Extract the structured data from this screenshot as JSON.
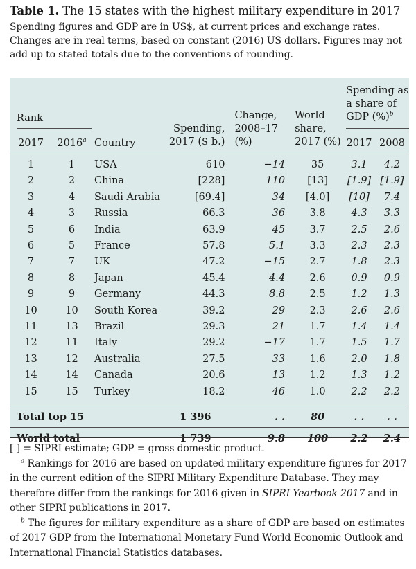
{
  "title_label": "Table 1.",
  "title_text": "The 15 states with the highest military expenditure in 2017",
  "intro": "Spending figures and GDP are in US$, at current prices and exchange rates. Changes are in real terms, based on constant (2016) US dollars. Figures may not add up to stated totals due to the conventions of rounding.",
  "headers": {
    "rank": "Rank",
    "rank_2017": "2017",
    "rank_2016": "2016",
    "rank_2016_note": "a",
    "country": "Country",
    "spending_1": "Spending,",
    "spending_2": "2017 ($ b.)",
    "change_1": "Change,",
    "change_2": "2008–17",
    "change_3": "(%)",
    "share_1": "World",
    "share_2": "share,",
    "share_3": "2017 (%)",
    "gdp_1": "Spending as",
    "gdp_2": "a share of",
    "gdp_3": "GDP (%)",
    "gdp_note": "b",
    "gdp_2017": "2017",
    "gdp_2008": "2008"
  },
  "rows": [
    {
      "r17": "1",
      "r16": "1",
      "country": "USA",
      "spending": "610",
      "change": "−14",
      "share": "35",
      "g17": "3.1",
      "g08": "4.2"
    },
    {
      "r17": "2",
      "r16": "2",
      "country": "China",
      "spending": "[228]",
      "change": "110",
      "share": "[13]",
      "g17": "[1.9]",
      "g08": "[1.9]"
    },
    {
      "r17": "3",
      "r16": "4",
      "country": "Saudi Arabia",
      "spending": "[69.4]",
      "change": "34",
      "share": "[4.0]",
      "g17": "[10]",
      "g08": "7.4"
    },
    {
      "r17": "4",
      "r16": "3",
      "country": "Russia",
      "spending": "66.3",
      "change": "36",
      "share": "3.8",
      "g17": "4.3",
      "g08": "3.3"
    },
    {
      "r17": "5",
      "r16": "6",
      "country": "India",
      "spending": "63.9",
      "change": "45",
      "share": "3.7",
      "g17": "2.5",
      "g08": "2.6"
    },
    {
      "r17": "6",
      "r16": "5",
      "country": "France",
      "spending": "57.8",
      "change": "5.1",
      "share": "3.3",
      "g17": "2.3",
      "g08": "2.3"
    },
    {
      "r17": "7",
      "r16": "7",
      "country": "UK",
      "spending": "47.2",
      "change": "−15",
      "share": "2.7",
      "g17": "1.8",
      "g08": "2.3"
    },
    {
      "r17": "8",
      "r16": "8",
      "country": "Japan",
      "spending": "45.4",
      "change": "4.4",
      "share": "2.6",
      "g17": "0.9",
      "g08": "0.9"
    },
    {
      "r17": "9",
      "r16": "9",
      "country": "Germany",
      "spending": "44.3",
      "change": "8.8",
      "share": "2.5",
      "g17": "1.2",
      "g08": "1.3"
    },
    {
      "r17": "10",
      "r16": "10",
      "country": "South Korea",
      "spending": "39.2",
      "change": "29",
      "share": "2.3",
      "g17": "2.6",
      "g08": "2.6"
    },
    {
      "r17": "11",
      "r16": "13",
      "country": "Brazil",
      "spending": "29.3",
      "change": "21",
      "share": "1.7",
      "g17": "1.4",
      "g08": "1.4"
    },
    {
      "r17": "12",
      "r16": "11",
      "country": "Italy",
      "spending": "29.2",
      "change": "−17",
      "share": "1.7",
      "g17": "1.5",
      "g08": "1.7"
    },
    {
      "r17": "13",
      "r16": "12",
      "country": "Australia",
      "spending": "27.5",
      "change": "33",
      "share": "1.6",
      "g17": "2.0",
      "g08": "1.8"
    },
    {
      "r17": "14",
      "r16": "14",
      "country": "Canada",
      "spending": "20.6",
      "change": "13",
      "share": "1.2",
      "g17": "1.3",
      "g08": "1.2"
    },
    {
      "r17": "15",
      "r16": "15",
      "country": "Turkey",
      "spending": "18.2",
      "change": "46",
      "share": "1.0",
      "g17": "2.2",
      "g08": "2.2"
    }
  ],
  "totals": [
    {
      "label": "Total top 15",
      "spending": "1 396",
      "change": ". .",
      "share": "80",
      "g17": ". .",
      "g08": ". ."
    },
    {
      "label": "World total",
      "spending": "1 739",
      "change": "9.8",
      "share": "100",
      "g17": "2.2",
      "g08": "2.4"
    }
  ],
  "notes": {
    "legend": "[ ] = SIPRI estimate; GDP = gross domestic product.",
    "a_mark": "a",
    "a_text_1": " Rankings for 2016 are based on updated military expenditure figures for 2017 in the current edition of the SIPRI Military Expenditure Database. They may therefore differ from the rankings for 2016 given in ",
    "a_italic": "SIPRI Yearbook 2017",
    "a_text_2": " and in other SIPRI publications in 2017.",
    "b_mark": "b",
    "b_text": " The figures for military expenditure as a share of GDP are based on estimates of 2017 GDP from the International Monetary Fund World Economic Outlook and International Financial Statistics databases."
  }
}
